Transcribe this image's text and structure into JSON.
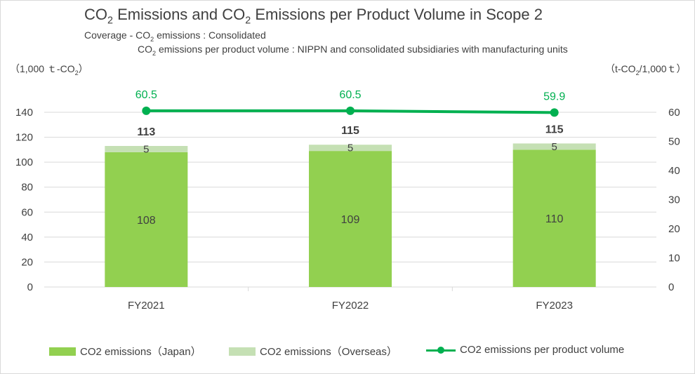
{
  "title": {
    "part1": "CO",
    "sub1": "2",
    "part2": " Emissions and CO",
    "sub2": "2",
    "part3": " Emissions per Product Volume in Scope 2"
  },
  "subtitle": {
    "line1_a": "Coverage - CO",
    "line1_sub": "2",
    "line1_b": " emissions : Consolidated",
    "line2_a": "CO",
    "line2_sub": "2",
    "line2_b": " emissions per product volume : NIPPN and consolidated subsidiaries with manufacturing units"
  },
  "units": {
    "left_a": "（1,000 ｔ-CO",
    "left_sub": "2",
    "left_b": "）",
    "right_a": "（t-CO",
    "right_sub": "2",
    "right_b": "/1,000ｔ）"
  },
  "colors": {
    "japan": "#92d050",
    "overseas": "#c5e0b4",
    "line": "#00b050",
    "grid": "#d9d9d9",
    "text": "#404040"
  },
  "legend": {
    "japan": "CO2 emissions（Japan）",
    "overseas": "CO2 emissions（Overseas）",
    "line": "CO2 emissions per product volume"
  },
  "chart_data": {
    "type": "bar",
    "stacked": true,
    "categories": [
      "FY2021",
      "FY2022",
      "FY2023"
    ],
    "series": [
      {
        "name": "CO2 emissions（Japan）",
        "values": [
          108,
          109,
          110
        ],
        "axis": "left"
      },
      {
        "name": "CO2 emissions（Overseas）",
        "values": [
          5,
          5,
          5
        ],
        "axis": "left"
      },
      {
        "name": "CO2 emissions per product volume",
        "type": "line",
        "values": [
          60.5,
          60.5,
          59.9
        ],
        "axis": "right"
      }
    ],
    "totals": [
      113,
      115,
      115
    ],
    "data_labels": {
      "japan": [
        "108",
        "109",
        "110"
      ],
      "overseas": [
        "5",
        "5",
        "5"
      ],
      "totals": [
        "113",
        "115",
        "115"
      ],
      "line": [
        "60.5",
        "60.5",
        "59.9"
      ]
    },
    "y_left": {
      "min": 0,
      "max": 140,
      "ticks": [
        "0",
        "20",
        "40",
        "60",
        "80",
        "100",
        "120",
        "140"
      ]
    },
    "y_right": {
      "min": 0,
      "max": 60,
      "ticks": [
        "0",
        "10",
        "20",
        "30",
        "40",
        "50",
        "60"
      ]
    },
    "grid": true,
    "legend_position": "bottom"
  }
}
